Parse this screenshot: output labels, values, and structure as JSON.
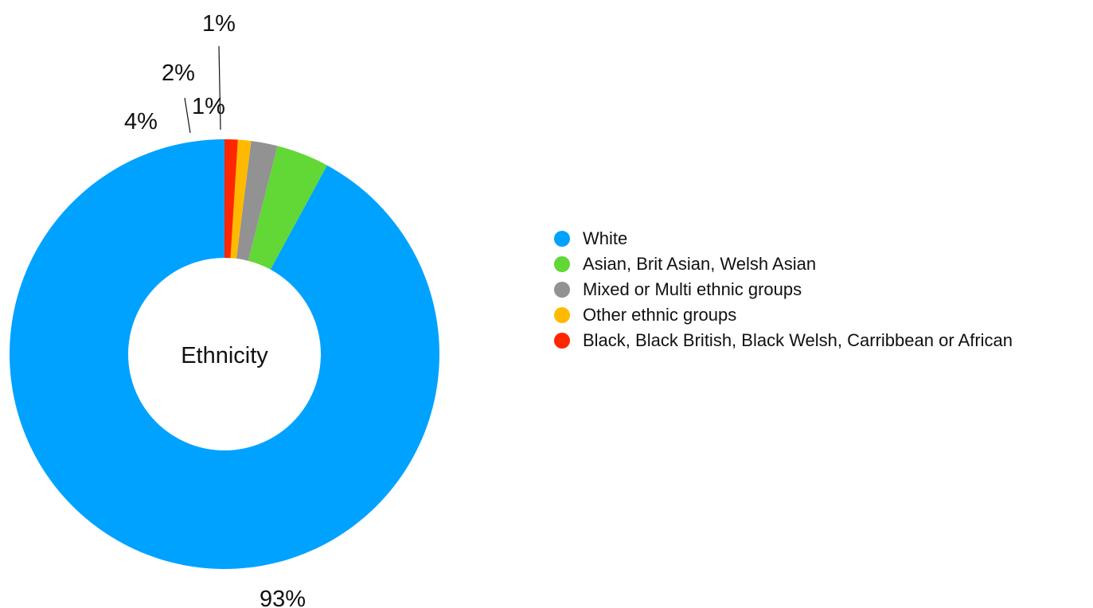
{
  "chart_data": {
    "type": "pie",
    "center_label": "Ethnicity",
    "categories": [
      "White",
      "Asian, Brit Asian, Welsh Asian",
      "Mixed or Multi ethnic groups",
      "Other ethnic groups",
      "Black, Black British, Black Welsh, Carribbean or African"
    ],
    "values": [
      93,
      4,
      2,
      1,
      1
    ],
    "value_labels": [
      "93%",
      "4%",
      "2%",
      "1%",
      "1%"
    ],
    "colors": [
      "#00a2ff",
      "#61d836",
      "#929292",
      "#ffba00",
      "#ff2600"
    ],
    "legend_position": "right",
    "style": "donut"
  }
}
